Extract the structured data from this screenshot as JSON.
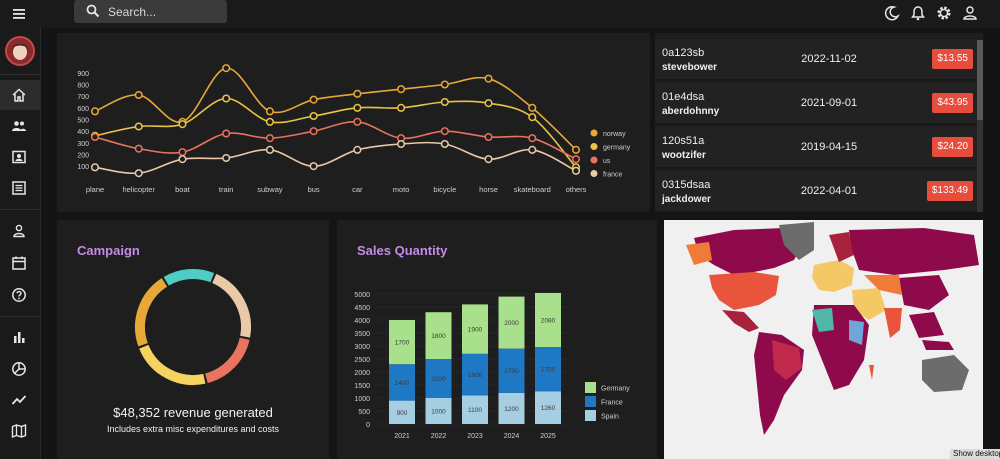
{
  "search": {
    "placeholder": "Search..."
  },
  "icons": {
    "menu": "hamburger-menu-icon",
    "search": "search-icon",
    "theme": "dark-mode-icon",
    "notifications": "bell-icon",
    "settings": "gear-icon",
    "account": "user-icon"
  },
  "sidebar": {
    "items": [
      {
        "name": "home",
        "icon": "home-icon",
        "active": true
      },
      {
        "name": "team",
        "icon": "people-icon"
      },
      {
        "name": "contacts",
        "icon": "contacts-icon"
      },
      {
        "name": "invoices",
        "icon": "receipt-icon"
      },
      {
        "name": "profile",
        "icon": "person-icon"
      },
      {
        "name": "calendar",
        "icon": "calendar-icon"
      },
      {
        "name": "faq",
        "icon": "help-icon"
      },
      {
        "name": "bar",
        "icon": "bar-chart-icon"
      },
      {
        "name": "pie",
        "icon": "pie-chart-icon"
      },
      {
        "name": "line",
        "icon": "line-chart-icon"
      },
      {
        "name": "geography",
        "icon": "map-icon"
      }
    ]
  },
  "transactions": [
    {
      "id": "0a123sb",
      "user": "stevebower",
      "date": "2022-11-02",
      "cost": "$13.55"
    },
    {
      "id": "01e4dsa",
      "user": "aberdohnny",
      "date": "2021-09-01",
      "cost": "$43.95"
    },
    {
      "id": "120s51a",
      "user": "wootzifer",
      "date": "2019-04-15",
      "cost": "$24.20"
    },
    {
      "id": "0315dsaa",
      "user": "jackdower",
      "date": "2022-04-01",
      "cost": "$133.49"
    }
  ],
  "campaign": {
    "title": "Campaign",
    "revenue": "$48,352 revenue generated",
    "subtitle": "Includes extra misc expenditures and costs",
    "ring_colors": [
      "#4ecdc4",
      "#e9c9a8",
      "#e8735f",
      "#f4d35e",
      "#e8a838"
    ]
  },
  "sales": {
    "title": "Sales Quantity"
  },
  "taskbar": {
    "show_desktop": "Show desktop"
  },
  "colors": {
    "norway": "#e8a838",
    "germany": "#e8c547",
    "us": "#e8735f",
    "france": "#e9c9a8",
    "bar_germany": "#a8e08c",
    "bar_france": "#1f78c4",
    "bar_spain": "#a6cee3",
    "badge": "#e74c3c",
    "accent": "#c58be6"
  },
  "chart_data": [
    {
      "type": "line",
      "x": [
        "plane",
        "helicopter",
        "boat",
        "train",
        "subway",
        "bus",
        "car",
        "moto",
        "bicycle",
        "horse",
        "skateboard",
        "others"
      ],
      "yticks": [
        100,
        200,
        300,
        400,
        500,
        600,
        700,
        800,
        900
      ],
      "ylim": [
        50,
        950
      ],
      "legend_position": "right",
      "series": [
        {
          "name": "norway",
          "values": [
            570,
            710,
            480,
            940,
            570,
            670,
            720,
            760,
            800,
            850,
            600,
            240
          ]
        },
        {
          "name": "germany",
          "values": [
            360,
            440,
            460,
            680,
            480,
            530,
            600,
            600,
            650,
            640,
            520,
            90
          ]
        },
        {
          "name": "us",
          "values": [
            350,
            250,
            220,
            380,
            340,
            400,
            480,
            340,
            400,
            350,
            340,
            160
          ]
        },
        {
          "name": "france",
          "values": [
            90,
            40,
            160,
            170,
            240,
            100,
            240,
            290,
            290,
            160,
            240,
            60
          ]
        }
      ]
    },
    {
      "type": "bar",
      "stacked": true,
      "categories": [
        "2021",
        "2022",
        "2023",
        "2024",
        "2025"
      ],
      "yticks": [
        0,
        500,
        1000,
        1500,
        2000,
        2500,
        3000,
        3500,
        4000,
        4500,
        5000
      ],
      "ylim": [
        0,
        5000
      ],
      "legend_position": "right",
      "series": [
        {
          "name": "Spain",
          "values": [
            900,
            1000,
            1100,
            1200,
            1260
          ]
        },
        {
          "name": "France",
          "values": [
            1400,
            1500,
            1600,
            1700,
            1700
          ]
        },
        {
          "name": "Germany",
          "values": [
            1700,
            1800,
            1900,
            2000,
            2080
          ]
        }
      ]
    },
    {
      "type": "donut",
      "values": [
        15,
        22,
        18,
        23,
        22
      ]
    }
  ]
}
